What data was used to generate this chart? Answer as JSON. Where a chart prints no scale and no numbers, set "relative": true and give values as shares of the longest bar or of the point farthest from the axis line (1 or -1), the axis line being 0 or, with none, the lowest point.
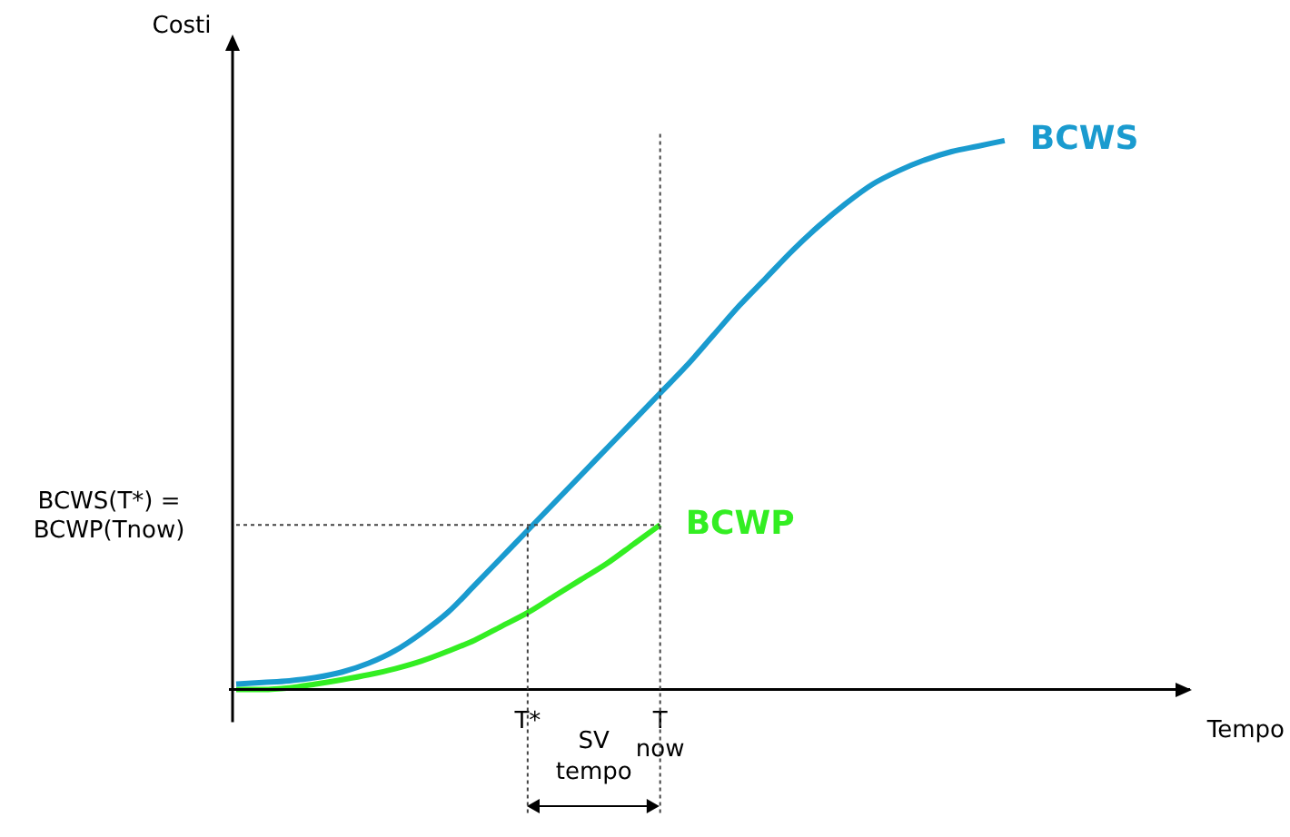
{
  "chart_data": {
    "type": "line",
    "relative": true,
    "xlabel": "Tempo",
    "ylabel": "Costi",
    "categories": [
      null,
      null,
      null,
      null,
      null,
      null,
      null,
      null,
      null,
      null,
      null,
      "T*",
      null,
      null,
      null,
      null,
      "T now",
      null,
      null,
      null,
      null,
      null,
      null,
      null,
      null,
      null,
      null,
      null,
      null,
      null,
      null,
      null,
      null,
      null,
      null,
      null,
      null
    ],
    "series": [
      {
        "name": "BCWS",
        "color": "#1a9bcf",
        "values": [
          0.01,
          0.013,
          0.016,
          0.022,
          0.032,
          0.048,
          0.071,
          0.103,
          0.141,
          0.19,
          0.24,
          0.29,
          0.34,
          0.39,
          0.44,
          0.49,
          0.54,
          0.59,
          0.645,
          0.7,
          0.75,
          0.8,
          0.845,
          0.885,
          0.92,
          0.945,
          0.965,
          0.98,
          0.99,
          1,
          null,
          null,
          null,
          null,
          null,
          null,
          null
        ]
      },
      {
        "name": "BCWP",
        "color": "#33ee22",
        "values": [
          0,
          0,
          0.003,
          0.01,
          0.018,
          0.027,
          0.038,
          0.052,
          0.07,
          0.09,
          0.115,
          0.14,
          0.17,
          0.2,
          0.23,
          0.265,
          0.3,
          null,
          null,
          null,
          null,
          null,
          null,
          null,
          null,
          null,
          null,
          null,
          null,
          null,
          null,
          null,
          null,
          null,
          null,
          null,
          null
        ]
      }
    ],
    "ref_lines": [
      {
        "axis": "x",
        "value": "T*",
        "line_style": "dotted"
      },
      {
        "axis": "x",
        "value": "T now",
        "line_style": "dotted"
      },
      {
        "axis": "y",
        "value": 0.3,
        "label": "BCWS(T*) = BCWP(Tnow)",
        "line_style": "dotted"
      }
    ],
    "annotations": [
      "SV tempo"
    ],
    "legend": false,
    "grid": false,
    "marker": "none",
    "line_style": "solid"
  }
}
